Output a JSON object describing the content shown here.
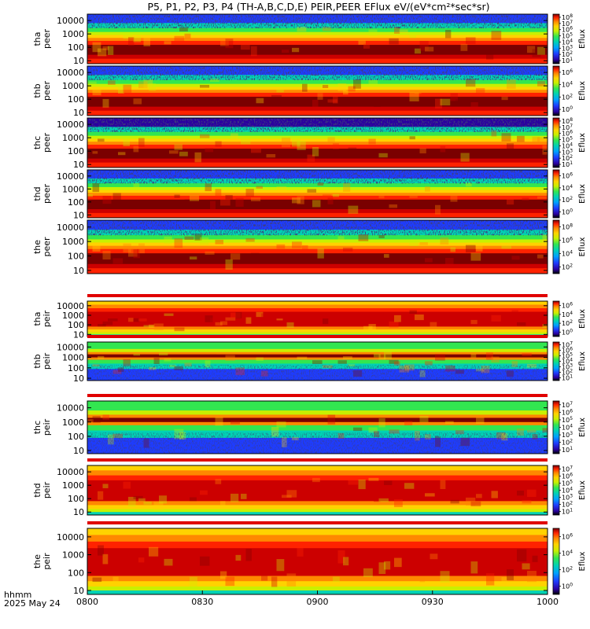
{
  "chart_data": {
    "type": "heatmap",
    "title": "P5, P1, P2, P3, P4 (TH-A,B,C,D,E) PEIR,PEER EFlux eV/(eV*cm²*sec*sr)",
    "x_label_lines": [
      "hhmm",
      "2025 May 24"
    ],
    "x_ticks": [
      "0800",
      "0830",
      "0900",
      "0930",
      "1000"
    ],
    "y_ticks": [
      "10",
      "100",
      "1000",
      "10000"
    ],
    "cbar_label": "Eflux",
    "colormap": [
      "#7a0000",
      "#cc0000",
      "#ff2200",
      "#ff8800",
      "#ffd200",
      "#c8f000",
      "#32e650",
      "#00d2b4",
      "#00a0ff",
      "#1e3cff",
      "#2a00a0",
      "#000000"
    ],
    "panels": [
      {
        "probe": "tha",
        "species": "peer",
        "ylabel": [
          "tha",
          "peer"
        ],
        "cbar_ticks": [
          "10",
          "10",
          "10",
          "10",
          "10",
          "10",
          "10",
          "10"
        ],
        "cbar_exps": [
          "1",
          "2",
          "3",
          "4",
          "5",
          "6",
          "7",
          "8"
        ]
      },
      {
        "probe": "thb",
        "species": "peer",
        "ylabel": [
          "thb",
          "peer"
        ],
        "cbar_ticks": [
          "10",
          "10",
          "10",
          "10"
        ],
        "cbar_exps": [
          "0",
          "2",
          "4",
          "6"
        ]
      },
      {
        "probe": "thc",
        "species": "peer",
        "ylabel": [
          "thc",
          "peer"
        ],
        "cbar_ticks": [
          "10",
          "10",
          "10",
          "10",
          "10",
          "10",
          "10",
          "10"
        ],
        "cbar_exps": [
          "1",
          "2",
          "3",
          "4",
          "5",
          "6",
          "7",
          "8"
        ]
      },
      {
        "probe": "thd",
        "species": "peer",
        "ylabel": [
          "thd",
          "peer"
        ],
        "cbar_ticks": [
          "10",
          "10",
          "10",
          "10"
        ],
        "cbar_exps": [
          "0",
          "2",
          "4",
          "6"
        ]
      },
      {
        "probe": "the",
        "species": "peer",
        "ylabel": [
          "the",
          "peer"
        ],
        "cbar_ticks": [
          "10",
          "10",
          "10",
          "10"
        ],
        "cbar_exps": [
          "2",
          "4",
          "6",
          "8"
        ]
      },
      {
        "probe": "tha",
        "species": "peir",
        "ylabel": [
          "tha",
          "peir"
        ],
        "cbar_ticks": [
          "10",
          "10",
          "10",
          "10"
        ],
        "cbar_exps": [
          "0",
          "2",
          "4",
          "6"
        ]
      },
      {
        "probe": "thb",
        "species": "peir",
        "ylabel": [
          "thb",
          "peir"
        ],
        "cbar_ticks": [
          "10",
          "10",
          "10",
          "10",
          "10",
          "10",
          "10"
        ],
        "cbar_exps": [
          "1",
          "2",
          "3",
          "4",
          "5",
          "6",
          "7"
        ]
      },
      {
        "probe": "thc",
        "species": "peir",
        "ylabel": [
          "thc",
          "peir"
        ],
        "cbar_ticks": [
          "10",
          "10",
          "10",
          "10",
          "10",
          "10",
          "10"
        ],
        "cbar_exps": [
          "1",
          "2",
          "3",
          "4",
          "5",
          "6",
          "7"
        ]
      },
      {
        "probe": "thd",
        "species": "peir",
        "ylabel": [
          "thd",
          "peir"
        ],
        "cbar_ticks": [
          "10",
          "10",
          "10",
          "10",
          "10",
          "10",
          "10"
        ],
        "cbar_exps": [
          "1",
          "2",
          "3",
          "4",
          "5",
          "6",
          "7"
        ]
      },
      {
        "probe": "the",
        "species": "peir",
        "ylabel": [
          "the",
          "peir"
        ],
        "cbar_ticks": [
          "10",
          "10",
          "10",
          "10"
        ],
        "cbar_exps": [
          "0",
          "2",
          "4",
          "6"
        ]
      }
    ]
  }
}
